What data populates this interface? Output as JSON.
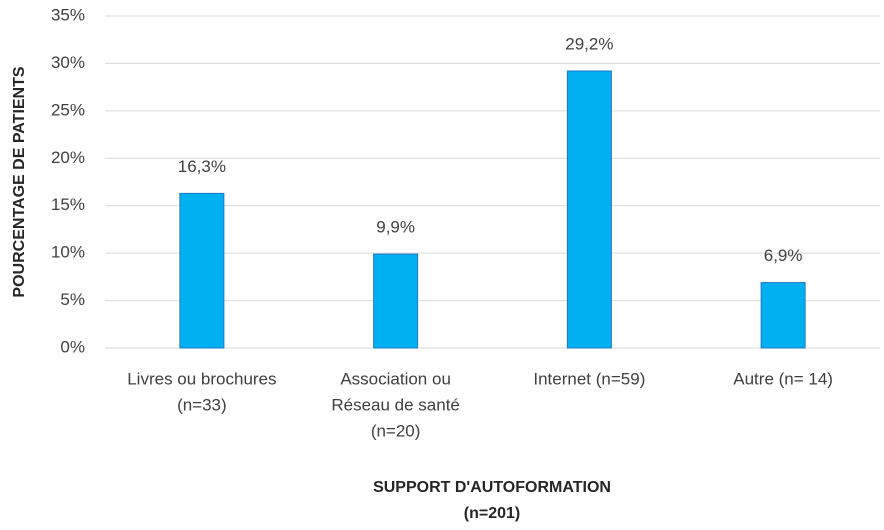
{
  "chart_data": {
    "type": "bar",
    "ylabel": "POURCENTAGE DE PATIENTS",
    "xlabel": [
      "SUPPORT D'AUTOFORMATION",
      "(n=201)"
    ],
    "categories": [
      [
        "Livres ou brochures",
        "(n=33)"
      ],
      [
        "Association ou",
        "Réseau de santé",
        "(n=20)"
      ],
      [
        "Internet (n=59)"
      ],
      [
        "Autre (n= 14)"
      ]
    ],
    "values": [
      16.3,
      9.9,
      29.2,
      6.9
    ],
    "value_labels": [
      "16,3%",
      "9,9%",
      "29,2%",
      "6,9%"
    ],
    "color": "#00b0f0",
    "ylim": [
      0,
      35
    ],
    "yticks": [
      {
        "value": 0,
        "label": "0%"
      },
      {
        "value": 5,
        "label": "5%"
      },
      {
        "value": 10,
        "label": "10%"
      },
      {
        "value": 15,
        "label": "15%"
      },
      {
        "value": 20,
        "label": "20%"
      },
      {
        "value": 25,
        "label": "25%"
      },
      {
        "value": 30,
        "label": "30%"
      },
      {
        "value": 35,
        "label": "35%"
      }
    ],
    "grid": true
  }
}
